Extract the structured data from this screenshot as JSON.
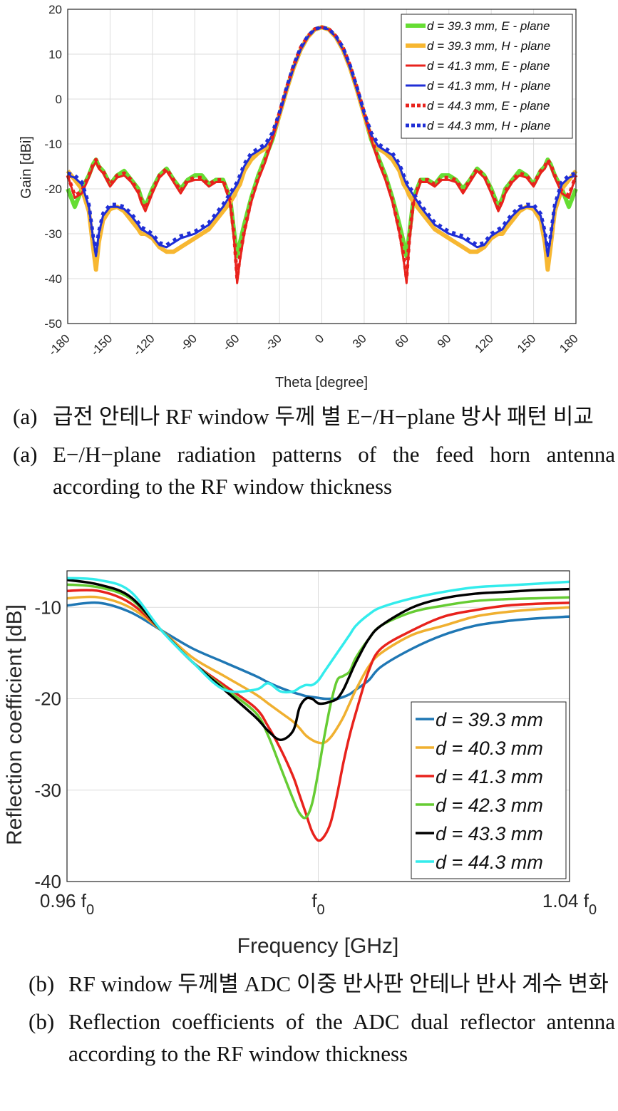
{
  "figure_a": {
    "caption_label": "(a)",
    "caption_ko": "급전 안테나 RF window 두께 별 E−/H−plane 방사 패턴 비교",
    "caption_en": "E−/H−plane radiation patterns of the feed horn antenna according to the RF window thickness"
  },
  "figure_b": {
    "caption_label": "(b)",
    "caption_ko": "RF window 두께별 ADC 이중 반사판 안테나 반사 계수 변화",
    "caption_en": "Reflection coefficients of the ADC dual reflector antenna according to the RF window thickness"
  },
  "chart_data": [
    {
      "type": "line",
      "xlabel": "Theta [degree]",
      "ylabel": "Gain [dBi]",
      "xlim": [
        -180,
        180
      ],
      "ylim": [
        -50,
        20
      ],
      "xticks": [
        "-180",
        "-150",
        "-120",
        "-90",
        "-60",
        "-30",
        "0",
        "30",
        "60",
        "90",
        "120",
        "150",
        "180"
      ],
      "yticks": [
        "20",
        "10",
        "0",
        "-10",
        "-20",
        "-30",
        "-40",
        "-50"
      ],
      "grid": true,
      "legend_position": "top-right",
      "x": [
        0,
        5,
        10,
        15,
        20,
        25,
        30,
        35,
        40,
        45,
        50,
        55,
        58,
        60,
        62,
        65,
        70,
        75,
        80,
        85,
        90,
        95,
        100,
        105,
        110,
        115,
        120,
        125,
        128,
        130,
        135,
        140,
        145,
        150,
        155,
        158,
        160,
        162,
        165,
        170,
        175,
        180
      ],
      "series": [
        {
          "name": "d = 39.3 mm, E - plane",
          "color": "#66dd33",
          "width": 6,
          "dash": "",
          "values": [
            16,
            15.5,
            13.8,
            11,
            7,
            2,
            -3.5,
            -9,
            -13,
            -17,
            -22,
            -28,
            -32,
            -35,
            -30,
            -22,
            -18,
            -18,
            -19,
            -17,
            -17,
            -18,
            -20,
            -18,
            -15.5,
            -17,
            -20,
            -24,
            -22,
            -20,
            -18,
            -16,
            -17,
            -19,
            -16,
            -15,
            -13.5,
            -14.5,
            -17,
            -20,
            -24,
            -20
          ]
        },
        {
          "name": "d = 39.3 mm, H - plane",
          "color": "#f7b731",
          "width": 6,
          "dash": "",
          "values": [
            16,
            15.5,
            13.8,
            11,
            7,
            2,
            -3.5,
            -8.5,
            -11,
            -12,
            -13.5,
            -16,
            -19,
            -20,
            -21.5,
            -23,
            -25,
            -27,
            -29,
            -30,
            -31,
            -32,
            -33,
            -34,
            -34,
            -33,
            -31,
            -30,
            -30,
            -29,
            -27,
            -25,
            -24,
            -24.5,
            -27,
            -32,
            -38,
            -33,
            -25,
            -20,
            -18,
            -16
          ]
        },
        {
          "name": "d = 41.3 mm, E - plane",
          "color": "#e8221c",
          "width": 3,
          "dash": "",
          "values": [
            16,
            15.5,
            13.8,
            11,
            7,
            2,
            -3.5,
            -9,
            -14,
            -18,
            -23,
            -30,
            -36,
            -41,
            -32,
            -23,
            -18.5,
            -18.5,
            -19.5,
            -18,
            -18,
            -18.5,
            -21,
            -18.5,
            -16,
            -17.5,
            -21,
            -25,
            -23,
            -21,
            -18.5,
            -17,
            -17.5,
            -19.5,
            -16.5,
            -15.5,
            -14,
            -15,
            -17.5,
            -21,
            -22,
            -17
          ]
        },
        {
          "name": "d = 41.3 mm, H - plane",
          "color": "#1f2ed6",
          "width": 3,
          "dash": "",
          "values": [
            16,
            15.5,
            13.8,
            11,
            7,
            2,
            -3.5,
            -8,
            -10.5,
            -11.5,
            -12.5,
            -15,
            -17.5,
            -19,
            -20,
            -21.5,
            -24,
            -26,
            -28,
            -29,
            -30,
            -30.5,
            -31,
            -32,
            -33,
            -32.5,
            -30.5,
            -29.5,
            -29,
            -28,
            -26,
            -24.5,
            -24,
            -24,
            -26,
            -30,
            -35,
            -31,
            -24,
            -19,
            -17.5,
            -17
          ]
        },
        {
          "name": "d = 44.3 mm, E - plane",
          "color": "#e8221c",
          "width": 5,
          "dash": "5 6",
          "values": [
            16,
            15.6,
            14,
            11.5,
            7.5,
            2.5,
            -3,
            -8.5,
            -13.5,
            -17.5,
            -22.5,
            -29.5,
            -35,
            -40,
            -31,
            -22.5,
            -18,
            -18,
            -19,
            -17.5,
            -17.5,
            -18,
            -20.5,
            -18,
            -15.5,
            -17,
            -20.5,
            -24.5,
            -22.5,
            -20.5,
            -18,
            -16.5,
            -17,
            -19,
            -16,
            -15,
            -13.5,
            -14.5,
            -17,
            -20.5,
            -21.5,
            -17
          ]
        },
        {
          "name": "d = 44.3 mm, H - plane",
          "color": "#1f2ed6",
          "width": 5,
          "dash": "5 6",
          "values": [
            16,
            15.6,
            14,
            11.5,
            7.5,
            2.5,
            -3,
            -7.5,
            -10,
            -11,
            -12,
            -14.5,
            -17,
            -18.5,
            -19.5,
            -21,
            -23.5,
            -25.5,
            -27.5,
            -28.5,
            -29.5,
            -30,
            -30.5,
            -31.5,
            -32.5,
            -32,
            -30,
            -29,
            -28.5,
            -27.5,
            -25.5,
            -24,
            -23.5,
            -23.5,
            -25.5,
            -29.5,
            -34,
            -30.5,
            -23.5,
            -18.5,
            -17,
            -16.5
          ]
        }
      ]
    },
    {
      "type": "line",
      "xlabel": "Frequency [GHz]",
      "ylabel": "Reflection coefficient [dB]",
      "xlim": [
        -4,
        4
      ],
      "ylim": [
        -40,
        -6
      ],
      "xtick_values": [
        -4,
        0,
        4
      ],
      "xticks": [
        "0.96 f",
        "f",
        "1.04 f"
      ],
      "xtick_subscript": "0",
      "yticks": [
        "-10",
        "-20",
        "-30",
        "-40"
      ],
      "grid": true,
      "legend_position": "bottom-right",
      "x": [
        -4,
        -3.5,
        -3,
        -2.5,
        -2,
        -1.5,
        -1,
        -0.8,
        -0.6,
        -0.4,
        -0.3,
        -0.2,
        -0.1,
        0,
        0.1,
        0.2,
        0.3,
        0.4,
        0.5,
        0.6,
        0.8,
        1,
        1.5,
        2,
        2.5,
        3,
        3.5,
        4
      ],
      "series": [
        {
          "name": "d = 39.3 mm",
          "color": "#1f77b4",
          "values": [
            -9.8,
            -9.5,
            -10.5,
            -12.5,
            -14.5,
            -16,
            -17.5,
            -18.2,
            -18.8,
            -19.3,
            -19.5,
            -19.7,
            -19.8,
            -19.9,
            -20,
            -20,
            -20,
            -19.8,
            -19.5,
            -19,
            -18,
            -16.5,
            -14.5,
            -13,
            -12,
            -11.5,
            -11.2,
            -11
          ]
        },
        {
          "name": "d = 40.3 mm",
          "color": "#f0b030",
          "values": [
            -9,
            -8.9,
            -10,
            -12.5,
            -15.5,
            -17.5,
            -19.5,
            -20.5,
            -21.5,
            -22.5,
            -23.2,
            -24,
            -24.5,
            -24.8,
            -24.8,
            -24.2,
            -23.2,
            -22,
            -20.5,
            -19,
            -16.5,
            -15,
            -13,
            -12,
            -11,
            -10.5,
            -10.2,
            -10
          ]
        },
        {
          "name": "d = 41.3 mm",
          "color": "#e8221c",
          "values": [
            -8.2,
            -8.2,
            -9.5,
            -12.5,
            -16,
            -18.5,
            -21,
            -23,
            -25.5,
            -28.5,
            -30.5,
            -32.5,
            -34.5,
            -35.5,
            -35,
            -33.5,
            -30.5,
            -27,
            -24,
            -21.5,
            -17,
            -14.5,
            -12.5,
            -11,
            -10.3,
            -9.8,
            -9.6,
            -9.5
          ]
        },
        {
          "name": "d = 42.3 mm",
          "color": "#66cc33",
          "values": [
            -7.5,
            -7.8,
            -9,
            -12.5,
            -16,
            -18.8,
            -21.5,
            -24,
            -27.5,
            -31,
            -32.5,
            -33,
            -31.5,
            -28,
            -24,
            -20.5,
            -18,
            -17.5,
            -17,
            -15.5,
            -13.5,
            -12,
            -10.5,
            -9.8,
            -9.3,
            -9.1,
            -9,
            -8.9
          ]
        },
        {
          "name": "d = 43.3 mm",
          "color": "#000000",
          "values": [
            -7,
            -7.5,
            -8.8,
            -12.5,
            -16,
            -19,
            -22,
            -23.5,
            -24.5,
            -23.5,
            -21,
            -20,
            -20,
            -20.5,
            -20.5,
            -20.3,
            -20,
            -19,
            -17.5,
            -16,
            -13.5,
            -12,
            -10,
            -9,
            -8.5,
            -8.3,
            -8.1,
            -8
          ]
        },
        {
          "name": "d = 44.3 mm",
          "color": "#33ecec",
          "values": [
            -6.8,
            -7,
            -8.2,
            -12.5,
            -16,
            -19,
            -19,
            -18.3,
            -19.2,
            -19.2,
            -18.8,
            -18.5,
            -18.5,
            -18,
            -17,
            -16,
            -15,
            -14,
            -13,
            -12,
            -10.8,
            -10,
            -9,
            -8.3,
            -7.8,
            -7.6,
            -7.4,
            -7.2
          ]
        }
      ]
    }
  ]
}
